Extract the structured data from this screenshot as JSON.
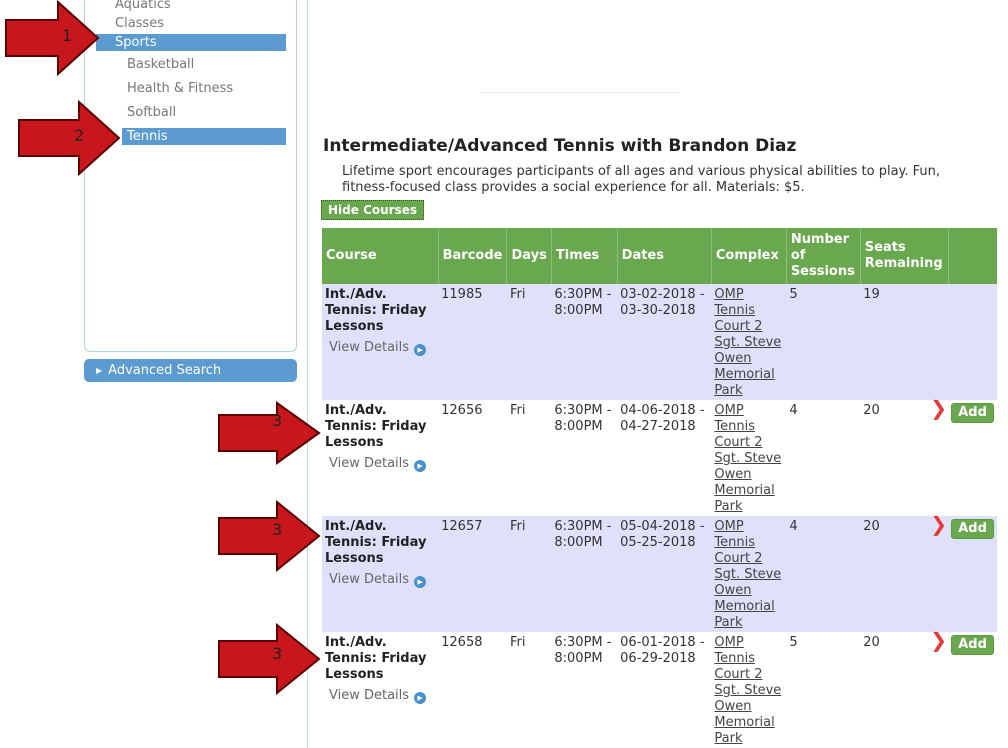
{
  "sidebar": {
    "items": [
      {
        "label": "Aquatics",
        "level": 1,
        "active": false
      },
      {
        "label": "Classes",
        "level": 1,
        "active": false
      },
      {
        "label": "Sports",
        "level": 1,
        "active": true
      },
      {
        "label": "Basketball",
        "level": 2,
        "active": false
      },
      {
        "label": "Health & Fitness",
        "level": 2,
        "active": false
      },
      {
        "label": "Softball",
        "level": 2,
        "active": false
      },
      {
        "label": "Tennis",
        "level": 2,
        "active": true
      }
    ],
    "advanced_search_label": "Advanced Search"
  },
  "annotations": [
    "1",
    "2",
    "3",
    "3",
    "3"
  ],
  "main": {
    "title": "Intermediate/Advanced Tennis with Brandon Diaz",
    "description": "Lifetime sport encourages participants of all ages and various physical abilities to play. Fun, fitness-focused class provides a social experience for all. Materials: $5.",
    "hide_courses_label": "Hide Courses",
    "columns": [
      "Course",
      "Barcode",
      "Days",
      "Times",
      "Dates",
      "Complex",
      "Number of Sessions",
      "Seats Remaining",
      ""
    ],
    "view_details_label": "View Details",
    "add_label": "Add",
    "rows": [
      {
        "course": "Int./Adv. Tennis: Friday Lessons",
        "barcode": "11985",
        "days": "Fri",
        "times": "6:30PM - 8:00PM",
        "dates": "03-02-2018 - 03-30-2018",
        "complex": "OMP Tennis Court 2 Sgt. Steve Owen Memorial Park",
        "sessions": "5",
        "seats": "19",
        "addable": false
      },
      {
        "course": "Int./Adv. Tennis: Friday Lessons",
        "barcode": "12656",
        "days": "Fri",
        "times": "6:30PM - 8:00PM",
        "dates": "04-06-2018 - 04-27-2018",
        "complex": "OMP Tennis Court 2 Sgt. Steve Owen Memorial Park",
        "sessions": "4",
        "seats": "20",
        "addable": true
      },
      {
        "course": "Int./Adv. Tennis: Friday Lessons",
        "barcode": "12657",
        "days": "Fri",
        "times": "6:30PM - 8:00PM",
        "dates": "05-04-2018 - 05-25-2018",
        "complex": "OMP Tennis Court 2 Sgt. Steve Owen Memorial Park",
        "sessions": "4",
        "seats": "20",
        "addable": true
      },
      {
        "course": "Int./Adv. Tennis: Friday Lessons",
        "barcode": "12658",
        "days": "Fri",
        "times": "6:30PM - 8:00PM",
        "dates": "06-01-2018 - 06-29-2018",
        "complex": "OMP Tennis Court 2 Sgt. Steve Owen Memorial Park",
        "sessions": "5",
        "seats": "20",
        "addable": true
      }
    ]
  },
  "colors": {
    "accent_green": "#6aa84f",
    "sidebar_blue": "#5b9bd0",
    "row_alt": "#dfe1fb",
    "arrow_red": "#c8161d"
  }
}
